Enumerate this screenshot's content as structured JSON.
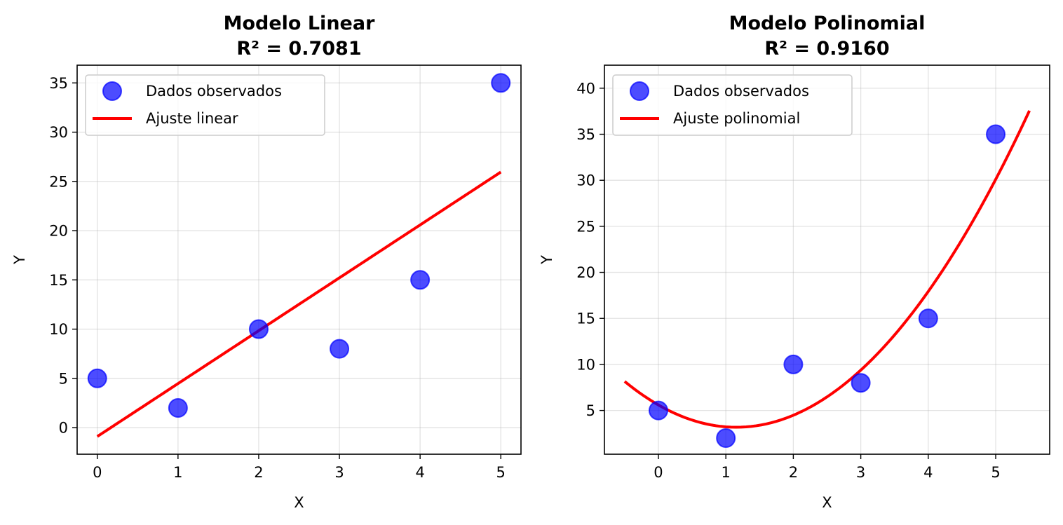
{
  "colors": {
    "points": "#0000ff",
    "fit": "#ff0000"
  },
  "chart_data": [
    {
      "type": "scatter",
      "title_line1": "Modelo Linear",
      "title_line2": "R² = 0.7081",
      "xlabel": "X",
      "ylabel": "Y",
      "xlim": [
        -0.25,
        5.25
      ],
      "ylim": [
        -2.7,
        36.8
      ],
      "xticks": [
        0,
        1,
        2,
        3,
        4,
        5
      ],
      "yticks": [
        0,
        5,
        10,
        15,
        20,
        25,
        30,
        35
      ],
      "grid": true,
      "legend_position": "upper-left",
      "points_series": {
        "name": "Dados observados",
        "x": [
          0,
          1,
          2,
          3,
          4,
          5
        ],
        "y": [
          5,
          2,
          10,
          8,
          15,
          35
        ]
      },
      "fit_series": {
        "name": "Ajuste linear",
        "kind": "linear",
        "coef": [
          -0.9,
          5.37
        ],
        "x_range": [
          0,
          5
        ]
      }
    },
    {
      "type": "scatter",
      "title_line1": "Modelo Polinomial",
      "title_line2": "R² = 0.9160",
      "xlabel": "X",
      "ylabel": "Y",
      "xlim": [
        -0.8,
        5.8
      ],
      "ylim": [
        0.25,
        42.5
      ],
      "xticks": [
        0,
        1,
        2,
        3,
        4,
        5
      ],
      "yticks": [
        5,
        10,
        15,
        20,
        25,
        30,
        35,
        40
      ],
      "grid": true,
      "legend_position": "upper-left",
      "points_series": {
        "name": "Dados observados",
        "x": [
          0,
          1,
          2,
          3,
          4,
          5
        ],
        "y": [
          5,
          2,
          10,
          8,
          15,
          35
        ]
      },
      "fit_series": {
        "name": "Ajuste polinomial",
        "kind": "quadratic",
        "coef": [
          5.6,
          -4.2,
          1.82
        ],
        "x_range": [
          -0.5,
          5.5
        ]
      }
    }
  ]
}
